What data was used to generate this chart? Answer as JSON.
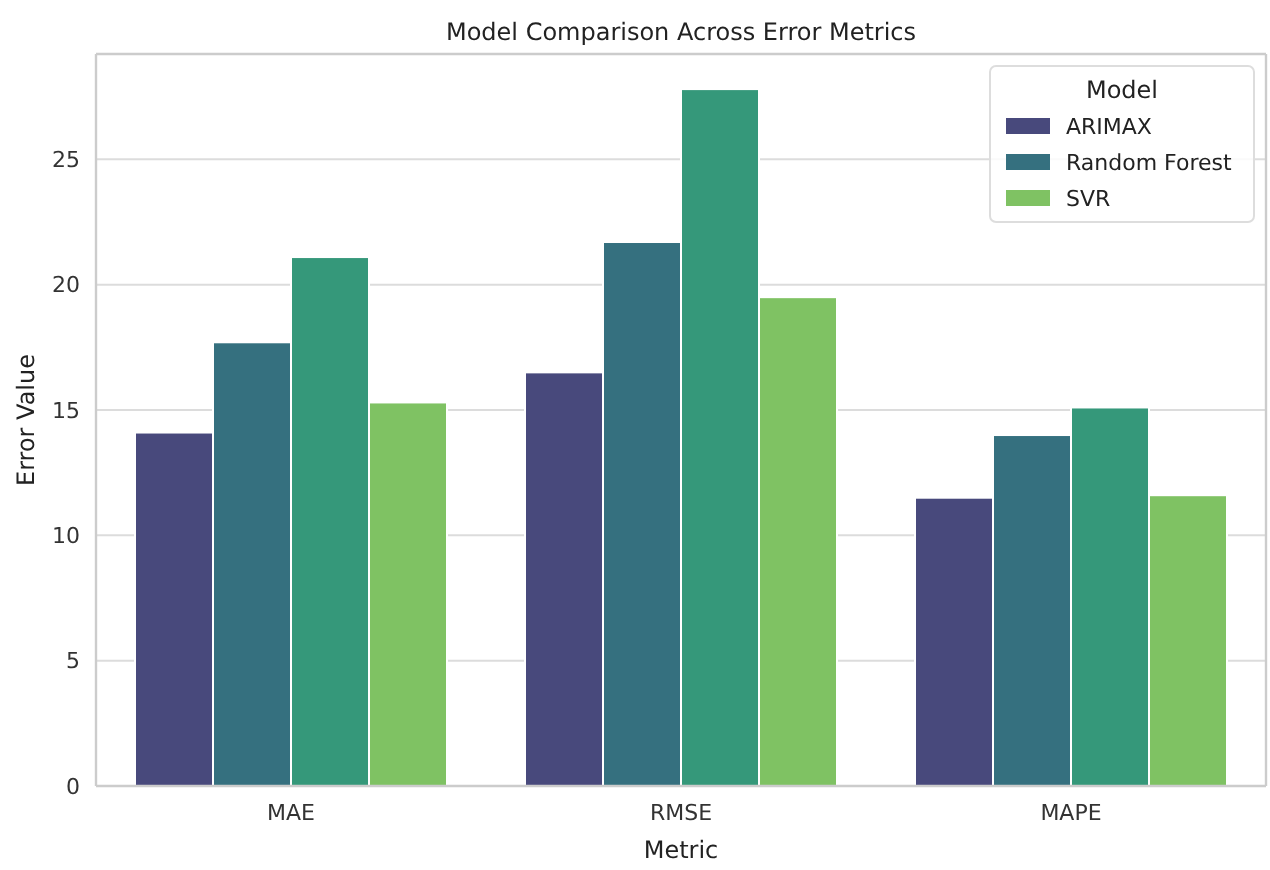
{
  "chart_data": {
    "type": "bar",
    "title": "Model Comparison Across Error Metrics",
    "xlabel": "Metric",
    "ylabel": "Error Value",
    "legend_title": "Model",
    "categories": [
      "MAE",
      "RMSE",
      "MAPE"
    ],
    "series": [
      {
        "name": "ARIMAX",
        "color": "#48497c",
        "values": [
          14.1,
          16.5,
          11.5
        ]
      },
      {
        "name": "Random Forest",
        "color": "#35707f",
        "values": [
          17.7,
          21.7,
          14.0
        ]
      },
      {
        "color": "#35987a",
        "values": [
          21.1,
          27.8,
          15.1
        ]
      },
      {
        "name": "SVR",
        "color": "#7fc263",
        "values": [
          15.3,
          19.5,
          11.6
        ]
      }
    ],
    "ylim": [
      0,
      29.2
    ],
    "yticks": [
      0,
      5,
      10,
      15,
      20,
      25
    ],
    "grid": "y",
    "legend": "top right"
  }
}
